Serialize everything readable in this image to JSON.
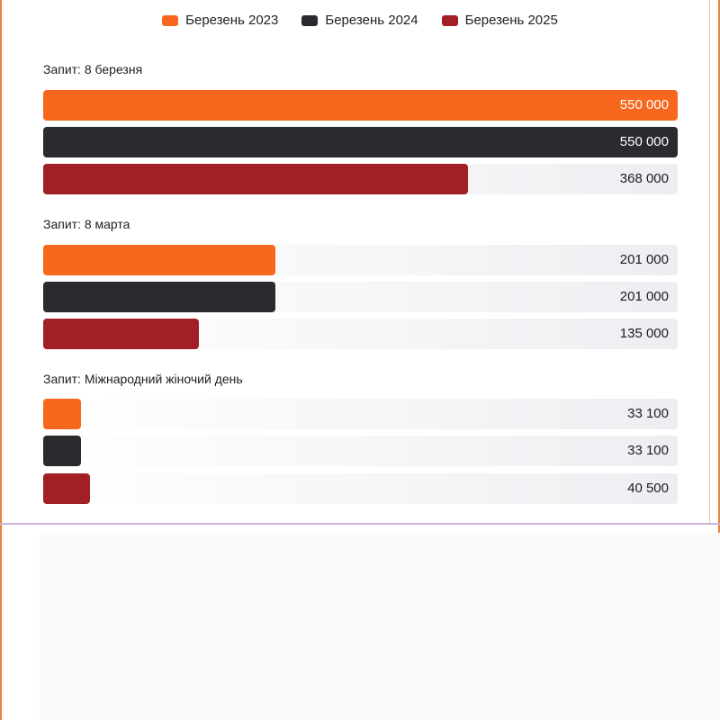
{
  "colors": {
    "march_2023": "#f7681e",
    "march_2024": "#2a2b2f",
    "march_2025": "#a21f25"
  },
  "legend": [
    {
      "label": "Березень 2023",
      "color": "#f7681e"
    },
    {
      "label": "Березень 2024",
      "color": "#2a2b2f"
    },
    {
      "label": "Березень 2025",
      "color": "#a21f25"
    }
  ],
  "chart_data": {
    "type": "bar",
    "orientation": "horizontal",
    "x_max": 550000,
    "groups": [
      {
        "label": "Запит: 8 березня",
        "values": [
          550000,
          550000,
          368000
        ],
        "value_labels": [
          "550 000",
          "550 000",
          "368 000"
        ]
      },
      {
        "label": "Запит: 8 марта",
        "values": [
          201000,
          201000,
          135000
        ],
        "value_labels": [
          "201 000",
          "201 000",
          "135 000"
        ]
      },
      {
        "label": "Запит: Міжнародний жіночий день",
        "values": [
          33100,
          33100,
          40500
        ],
        "value_labels": [
          "33 100",
          "33 100",
          "40 500"
        ]
      }
    ],
    "series": [
      "Березень 2023",
      "Березень 2024",
      "Березень 2025"
    ]
  }
}
